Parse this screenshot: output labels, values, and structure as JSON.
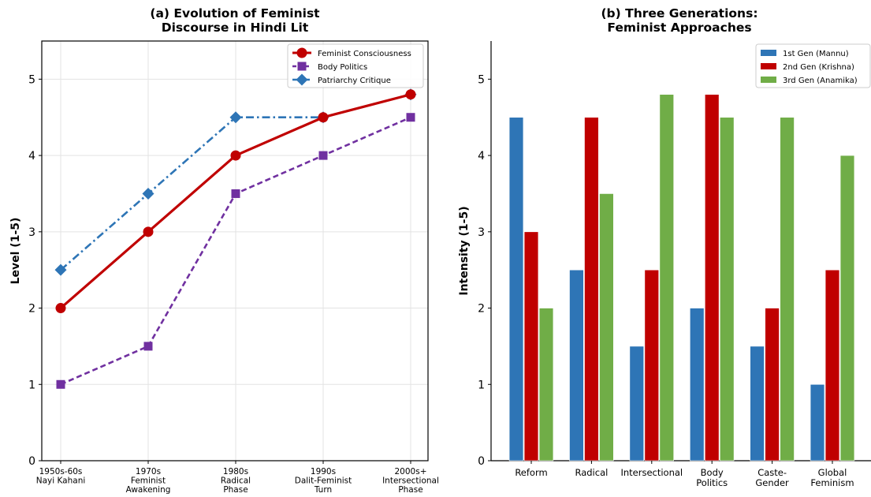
{
  "chart_data": [
    {
      "type": "line",
      "title": "(a) Evolution of Feminist\nDiscourse in Hindi Lit",
      "xlabel": "",
      "ylabel": "Level (1-5)",
      "categories": [
        "1950s-60s\nNayi Kahani",
        "1970s\nFeminist\nAwakening",
        "1980s\nRadical\nPhase",
        "1990s\nDalit-Feminist\nTurn",
        "2000s+\nIntersectional\nPhase"
      ],
      "ylim": [
        0,
        5.5
      ],
      "yticks": [
        0,
        1,
        2,
        3,
        4,
        5
      ],
      "grid": true,
      "legend_position": "top-right",
      "series": [
        {
          "name": "Feminist Consciousness",
          "values": [
            2,
            3,
            4,
            4.5,
            4.8
          ],
          "color": "#c00000",
          "line_style": "solid",
          "marker": "circle"
        },
        {
          "name": "Body Politics",
          "values": [
            1,
            1.5,
            3.5,
            4,
            4.5
          ],
          "color": "#7030a0",
          "line_style": "dashed",
          "marker": "square"
        },
        {
          "name": "Patriarchy Critique",
          "values": [
            2.5,
            3.5,
            4.5,
            4.5,
            4.8
          ],
          "color": "#2e75b6",
          "line_style": "dashdot",
          "marker": "diamond"
        }
      ]
    },
    {
      "type": "bar",
      "title": "(b) Three Generations:\nFeminist Approaches",
      "xlabel": "",
      "ylabel": "Intensity (1-5)",
      "categories": [
        "Reform",
        "Radical",
        "Intersectional",
        "Body\nPolitics",
        "Caste-\nGender",
        "Global\nFeminism"
      ],
      "ylim": [
        0,
        5.5
      ],
      "yticks": [
        0,
        1,
        2,
        3,
        4,
        5
      ],
      "grid": false,
      "legend_position": "top-right",
      "series": [
        {
          "name": "1st Gen (Mannu)",
          "values": [
            4.5,
            2.5,
            1.5,
            2,
            1.5,
            1
          ],
          "color": "#2e75b6"
        },
        {
          "name": "2nd Gen (Krishna)",
          "values": [
            3,
            4.5,
            2.5,
            4.8,
            2,
            2.5
          ],
          "color": "#c00000"
        },
        {
          "name": "3rd Gen (Anamika)",
          "values": [
            2,
            3.5,
            4.8,
            4.5,
            4.5,
            4
          ],
          "color": "#70ad47"
        }
      ]
    }
  ]
}
